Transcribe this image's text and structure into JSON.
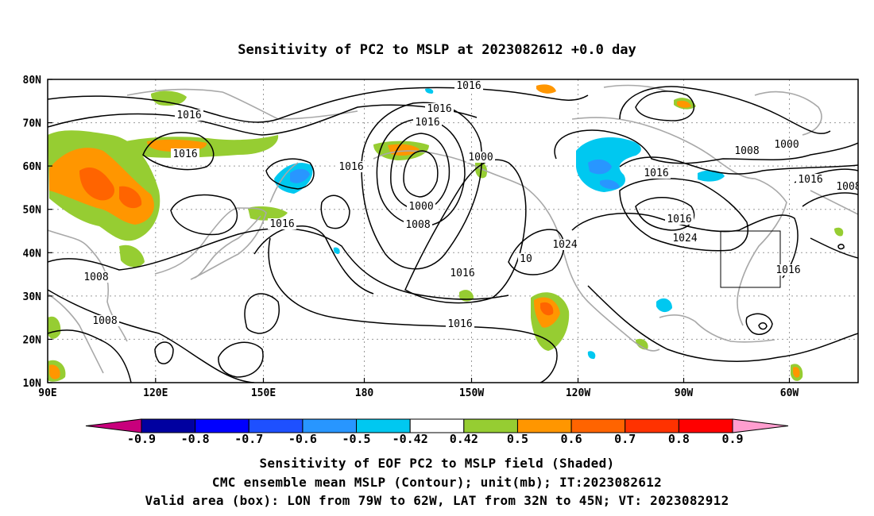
{
  "title": "Sensitivity of PC2 to MSLP at 2023082612 +0.0 day",
  "map": {
    "lat_labels": [
      "80N",
      "70N",
      "60N",
      "50N",
      "40N",
      "30N",
      "20N",
      "10N"
    ],
    "lon_labels": [
      "90E",
      "120E",
      "150E",
      "180",
      "150W",
      "120W",
      "90W",
      "60W"
    ],
    "contour_labels": [
      "1016",
      "1016",
      "1008",
      "1008",
      "1016",
      "1016",
      "1000",
      "1008",
      "1016",
      "1016",
      "1016",
      "1000",
      "1008",
      "1016",
      "10",
      "1024",
      "1016",
      "1016",
      "1016",
      "1024",
      "1008",
      "1000",
      "1016",
      "1016"
    ],
    "valid_box": {
      "lon_range": [
        "79W",
        "62W"
      ],
      "lat_range": [
        "32N",
        "45N"
      ]
    }
  },
  "colorbar": {
    "labels": [
      "-0.9",
      "-0.8",
      "-0.7",
      "-0.6",
      "-0.5",
      "-0.42",
      "0.42",
      "0.5",
      "0.6",
      "0.7",
      "0.8",
      "0.9"
    ],
    "colors": [
      "#c8007c",
      "#0000a0",
      "#0000ff",
      "#1e50ff",
      "#2896ff",
      "#00c8f0",
      "#ffffff",
      "#96cd32",
      "#ff9600",
      "#ff6400",
      "#ff3200",
      "#ff0000",
      "#ff9ecf"
    ]
  },
  "captions": {
    "line1": "Sensitivity of EOF PC2 to MSLP field (Shaded)",
    "line2": "CMC ensemble mean MSLP (Contour); unit(mb); IT:2023082612",
    "line3": "Valid area (box): LON from 79W to 62W, LAT from 32N to 45N; VT: 2023082912"
  }
}
